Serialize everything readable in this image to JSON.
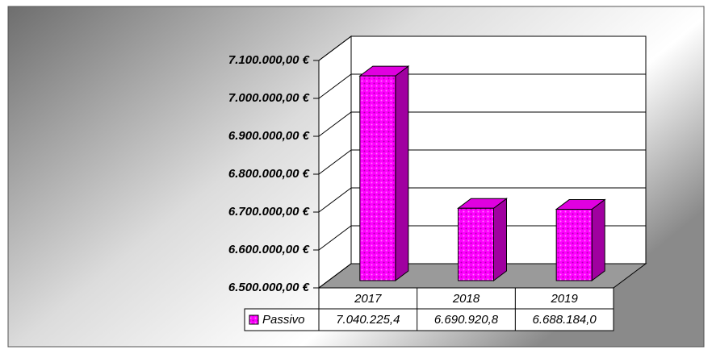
{
  "chart_data": {
    "type": "bar3d",
    "categories": [
      "2017",
      "2018",
      "2019"
    ],
    "series": [
      {
        "name": "Passivo",
        "color": "#ff00ff",
        "values": [
          7040225.4,
          6690920.8,
          6688184.0
        ],
        "value_labels": [
          "7.040.225,4",
          "6.690.920,8",
          "6.688.184,0"
        ]
      }
    ],
    "ylim": [
      6500000,
      7100000
    ],
    "yticks": [
      {
        "value": 6500000,
        "label": "6.500.000,00 €"
      },
      {
        "value": 6600000,
        "label": "6.600.000,00 €"
      },
      {
        "value": 6700000,
        "label": "6.700.000,00 €"
      },
      {
        "value": 6800000,
        "label": "6.800.000,00 €"
      },
      {
        "value": 6900000,
        "label": "6.900.000,00 €"
      },
      {
        "value": 7000000,
        "label": "7.000.000,00 €"
      },
      {
        "value": 7100000,
        "label": "7.100.000,00 €"
      }
    ],
    "grid": true
  }
}
